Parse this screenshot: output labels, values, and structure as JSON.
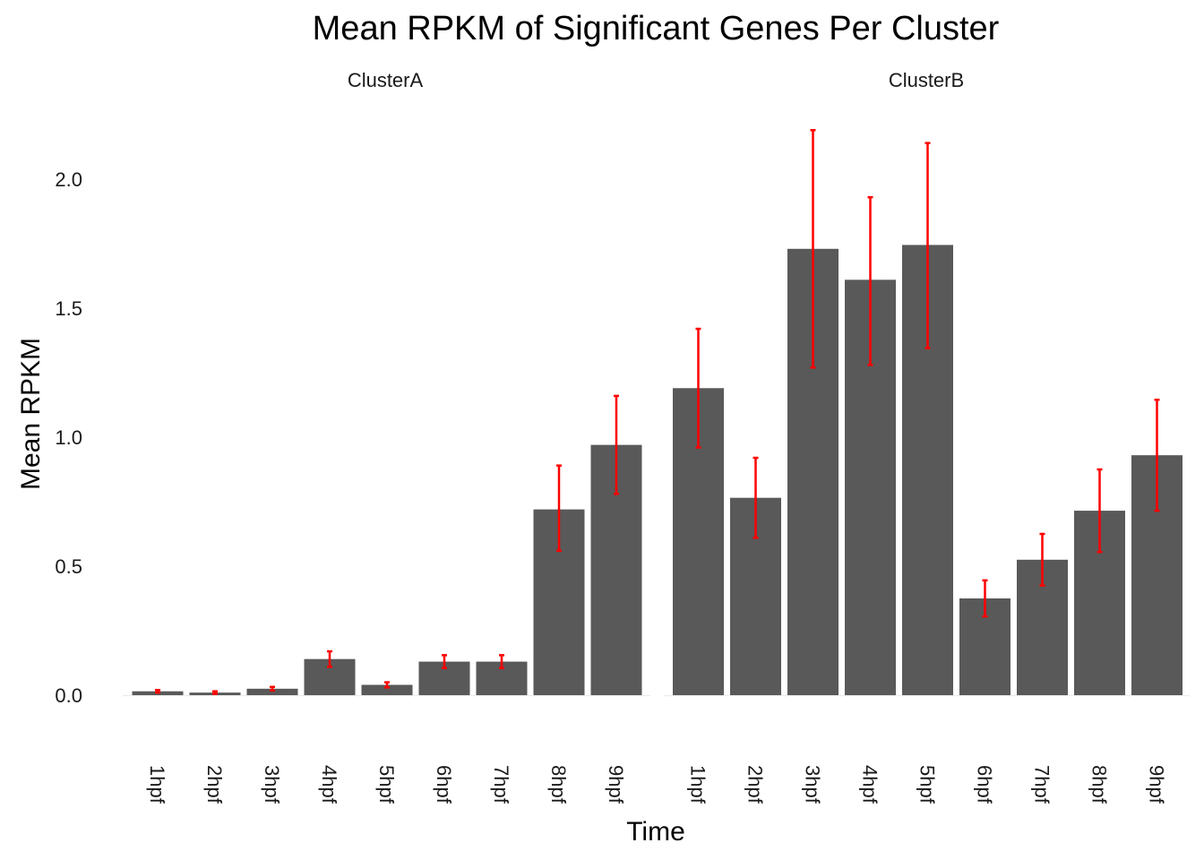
{
  "chart_data": {
    "type": "bar",
    "title": "Mean RPKM of Significant Genes Per Cluster",
    "xlabel": "Time",
    "ylabel": "Mean RPKM",
    "ylim": [
      0,
      2.3
    ],
    "yticks": [
      "0.0",
      "0.5",
      "1.0",
      "1.5",
      "2.0"
    ],
    "ytick_values": [
      0,
      0.5,
      1.0,
      1.5,
      2.0
    ],
    "grid": false,
    "bar_color": "#595959",
    "errorbar_color": "#ff0000",
    "background": "#ffffff",
    "facets": [
      {
        "label": "ClusterA",
        "categories": [
          "1hpf",
          "2hpf",
          "3hpf",
          "4hpf",
          "5hpf",
          "6hpf",
          "7hpf",
          "8hpf",
          "9hpf"
        ],
        "values": [
          0.015,
          0.01,
          0.025,
          0.14,
          0.04,
          0.13,
          0.13,
          0.72,
          0.97
        ],
        "error_low": [
          0.01,
          0.005,
          0.018,
          0.11,
          0.03,
          0.105,
          0.105,
          0.56,
          0.78
        ],
        "error_high": [
          0.02,
          0.015,
          0.032,
          0.17,
          0.05,
          0.155,
          0.155,
          0.89,
          1.16
        ]
      },
      {
        "label": "ClusterB",
        "categories": [
          "1hpf",
          "2hpf",
          "3hpf",
          "4hpf",
          "5hpf",
          "6hpf",
          "7hpf",
          "8hpf",
          "9hpf"
        ],
        "values": [
          1.19,
          0.765,
          1.73,
          1.61,
          1.745,
          0.375,
          0.525,
          0.715,
          0.93
        ],
        "error_low": [
          0.96,
          0.61,
          1.27,
          1.28,
          1.345,
          0.305,
          0.425,
          0.555,
          0.715
        ],
        "error_high": [
          1.42,
          0.92,
          2.19,
          1.93,
          2.14,
          0.445,
          0.625,
          0.875,
          1.145
        ]
      }
    ]
  }
}
